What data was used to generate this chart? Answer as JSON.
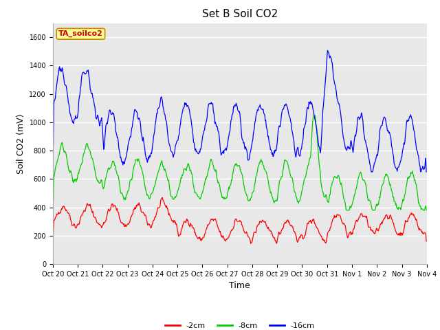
{
  "title": "Set B Soil CO2",
  "ylabel": "Soil CO2 (mV)",
  "xlabel": "Time",
  "ylim": [
    0,
    1700
  ],
  "yticks": [
    0,
    200,
    400,
    600,
    800,
    1000,
    1200,
    1400,
    1600
  ],
  "xtick_labels": [
    "Oct 20",
    "Oct 21",
    "Oct 22",
    "Oct 23",
    "Oct 24",
    "Oct 25",
    "Oct 26",
    "Oct 27",
    "Oct 28",
    "Oct 29",
    "Oct 30",
    "Oct 31",
    "Nov 1",
    "Nov 2",
    "Nov 3",
    "Nov 4"
  ],
  "legend_labels": [
    "-2cm",
    "-8cm",
    "-16cm"
  ],
  "legend_colors": [
    "#ff0000",
    "#00cc00",
    "#0000ff"
  ],
  "series_colors": [
    "#ff0000",
    "#00cc00",
    "#0000ff"
  ],
  "annotation_text": "TA_soilco2",
  "annotation_bg": "#ffff99",
  "annotation_border": "#cc8800",
  "annotation_text_color": "#cc0000",
  "grid_color": "#ffffff",
  "plot_bg_color": "#e8e8e8",
  "fig_bg_color": "#ffffff",
  "title_fontsize": 11,
  "axis_fontsize": 9,
  "tick_fontsize": 7,
  "legend_fontsize": 8,
  "annotation_fontsize": 8
}
